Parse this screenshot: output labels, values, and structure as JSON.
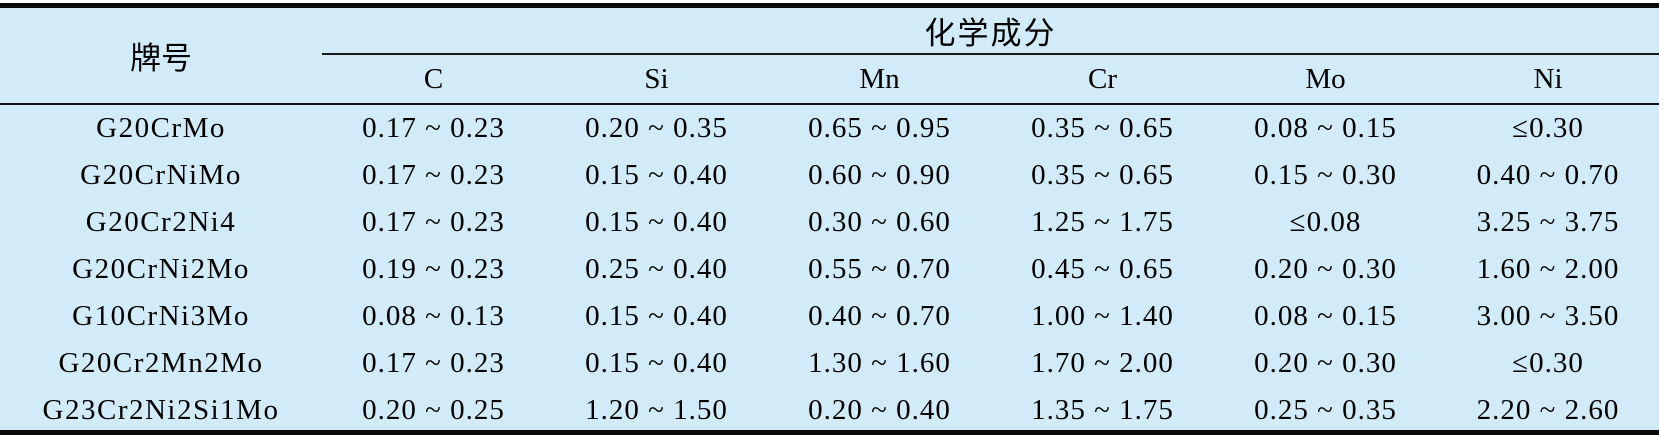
{
  "table": {
    "grade_header": "牌号",
    "group_header": "化学成分",
    "element_headers": [
      "C",
      "Si",
      "Mn",
      "Cr",
      "Mo",
      "Ni"
    ],
    "rows": [
      {
        "grade": "G20CrMo",
        "values": [
          "0.17 ~ 0.23",
          "0.20 ~ 0.35",
          "0.65 ~ 0.95",
          "0.35 ~ 0.65",
          "0.08 ~ 0.15",
          "≤0.30"
        ]
      },
      {
        "grade": "G20CrNiMo",
        "values": [
          "0.17 ~ 0.23",
          "0.15 ~ 0.40",
          "0.60 ~ 0.90",
          "0.35 ~ 0.65",
          "0.15 ~ 0.30",
          "0.40 ~ 0.70"
        ]
      },
      {
        "grade": "G20Cr2Ni4",
        "values": [
          "0.17 ~ 0.23",
          "0.15 ~ 0.40",
          "0.30 ~ 0.60",
          "1.25 ~ 1.75",
          "≤0.08",
          "3.25 ~ 3.75"
        ]
      },
      {
        "grade": "G20CrNi2Mo",
        "values": [
          "0.19 ~ 0.23",
          "0.25 ~ 0.40",
          "0.55 ~ 0.70",
          "0.45 ~ 0.65",
          "0.20 ~ 0.30",
          "1.60 ~ 2.00"
        ]
      },
      {
        "grade": "G10CrNi3Mo",
        "values": [
          "0.08 ~ 0.13",
          "0.15 ~ 0.40",
          "0.40 ~ 0.70",
          "1.00 ~ 1.40",
          "0.08 ~ 0.15",
          "3.00 ~ 3.50"
        ]
      },
      {
        "grade": "G20Cr2Mn2Mo",
        "values": [
          "0.17 ~ 0.23",
          "0.15 ~ 0.40",
          "1.30 ~ 1.60",
          "1.70 ~ 2.00",
          "0.20 ~ 0.30",
          "≤0.30"
        ]
      },
      {
        "grade": "G23Cr2Ni2Si1Mo",
        "values": [
          "0.20 ~ 0.25",
          "1.20 ~ 1.50",
          "0.20 ~ 0.40",
          "1.35 ~ 1.75",
          "0.25 ~ 0.35",
          "2.20 ~ 2.60"
        ]
      }
    ]
  },
  "colors": {
    "background": "#d1ebf8",
    "rule": "#0a0a0a",
    "text": "#000000"
  }
}
